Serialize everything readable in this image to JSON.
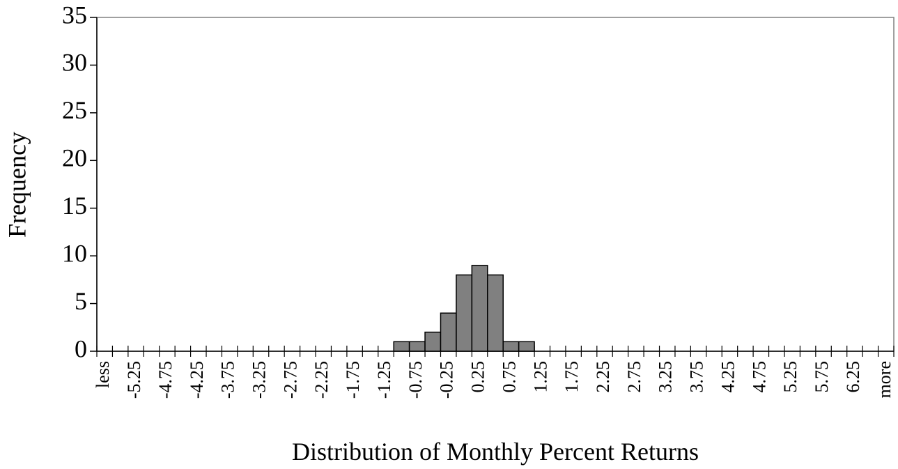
{
  "chart_data": {
    "type": "bar",
    "ylabel": "Frequency",
    "xlabel": "Distribution of Monthly Percent Returns",
    "categories": [
      "less",
      null,
      "-5.25",
      null,
      "-4.75",
      null,
      "-4.25",
      null,
      "-3.75",
      null,
      "-3.25",
      null,
      "-2.75",
      null,
      "-2.25",
      null,
      "-1.75",
      null,
      "-1.25",
      null,
      "-0.75",
      null,
      "-0.25",
      null,
      "0.25",
      null,
      "0.75",
      null,
      "1.25",
      null,
      "1.75",
      null,
      "2.25",
      null,
      "2.75",
      null,
      "3.25",
      null,
      "3.75",
      null,
      "4.25",
      null,
      "4.75",
      null,
      "5.25",
      null,
      "5.75",
      null,
      "6.25",
      null,
      "more"
    ],
    "values": [
      0,
      0,
      0,
      0,
      0,
      0,
      0,
      0,
      0,
      0,
      0,
      0,
      0,
      0,
      0,
      0,
      0,
      0,
      0,
      1,
      1,
      2,
      4,
      8,
      9,
      8,
      1,
      1,
      0,
      0,
      0,
      0,
      0,
      0,
      0,
      0,
      0,
      0,
      0,
      0,
      0,
      0,
      0,
      0,
      0,
      0,
      0,
      0,
      0,
      0,
      0
    ],
    "color": "#808080",
    "ylim": [
      0,
      35
    ],
    "yticks": [
      0,
      5,
      10,
      15,
      20,
      25,
      30,
      35
    ]
  }
}
